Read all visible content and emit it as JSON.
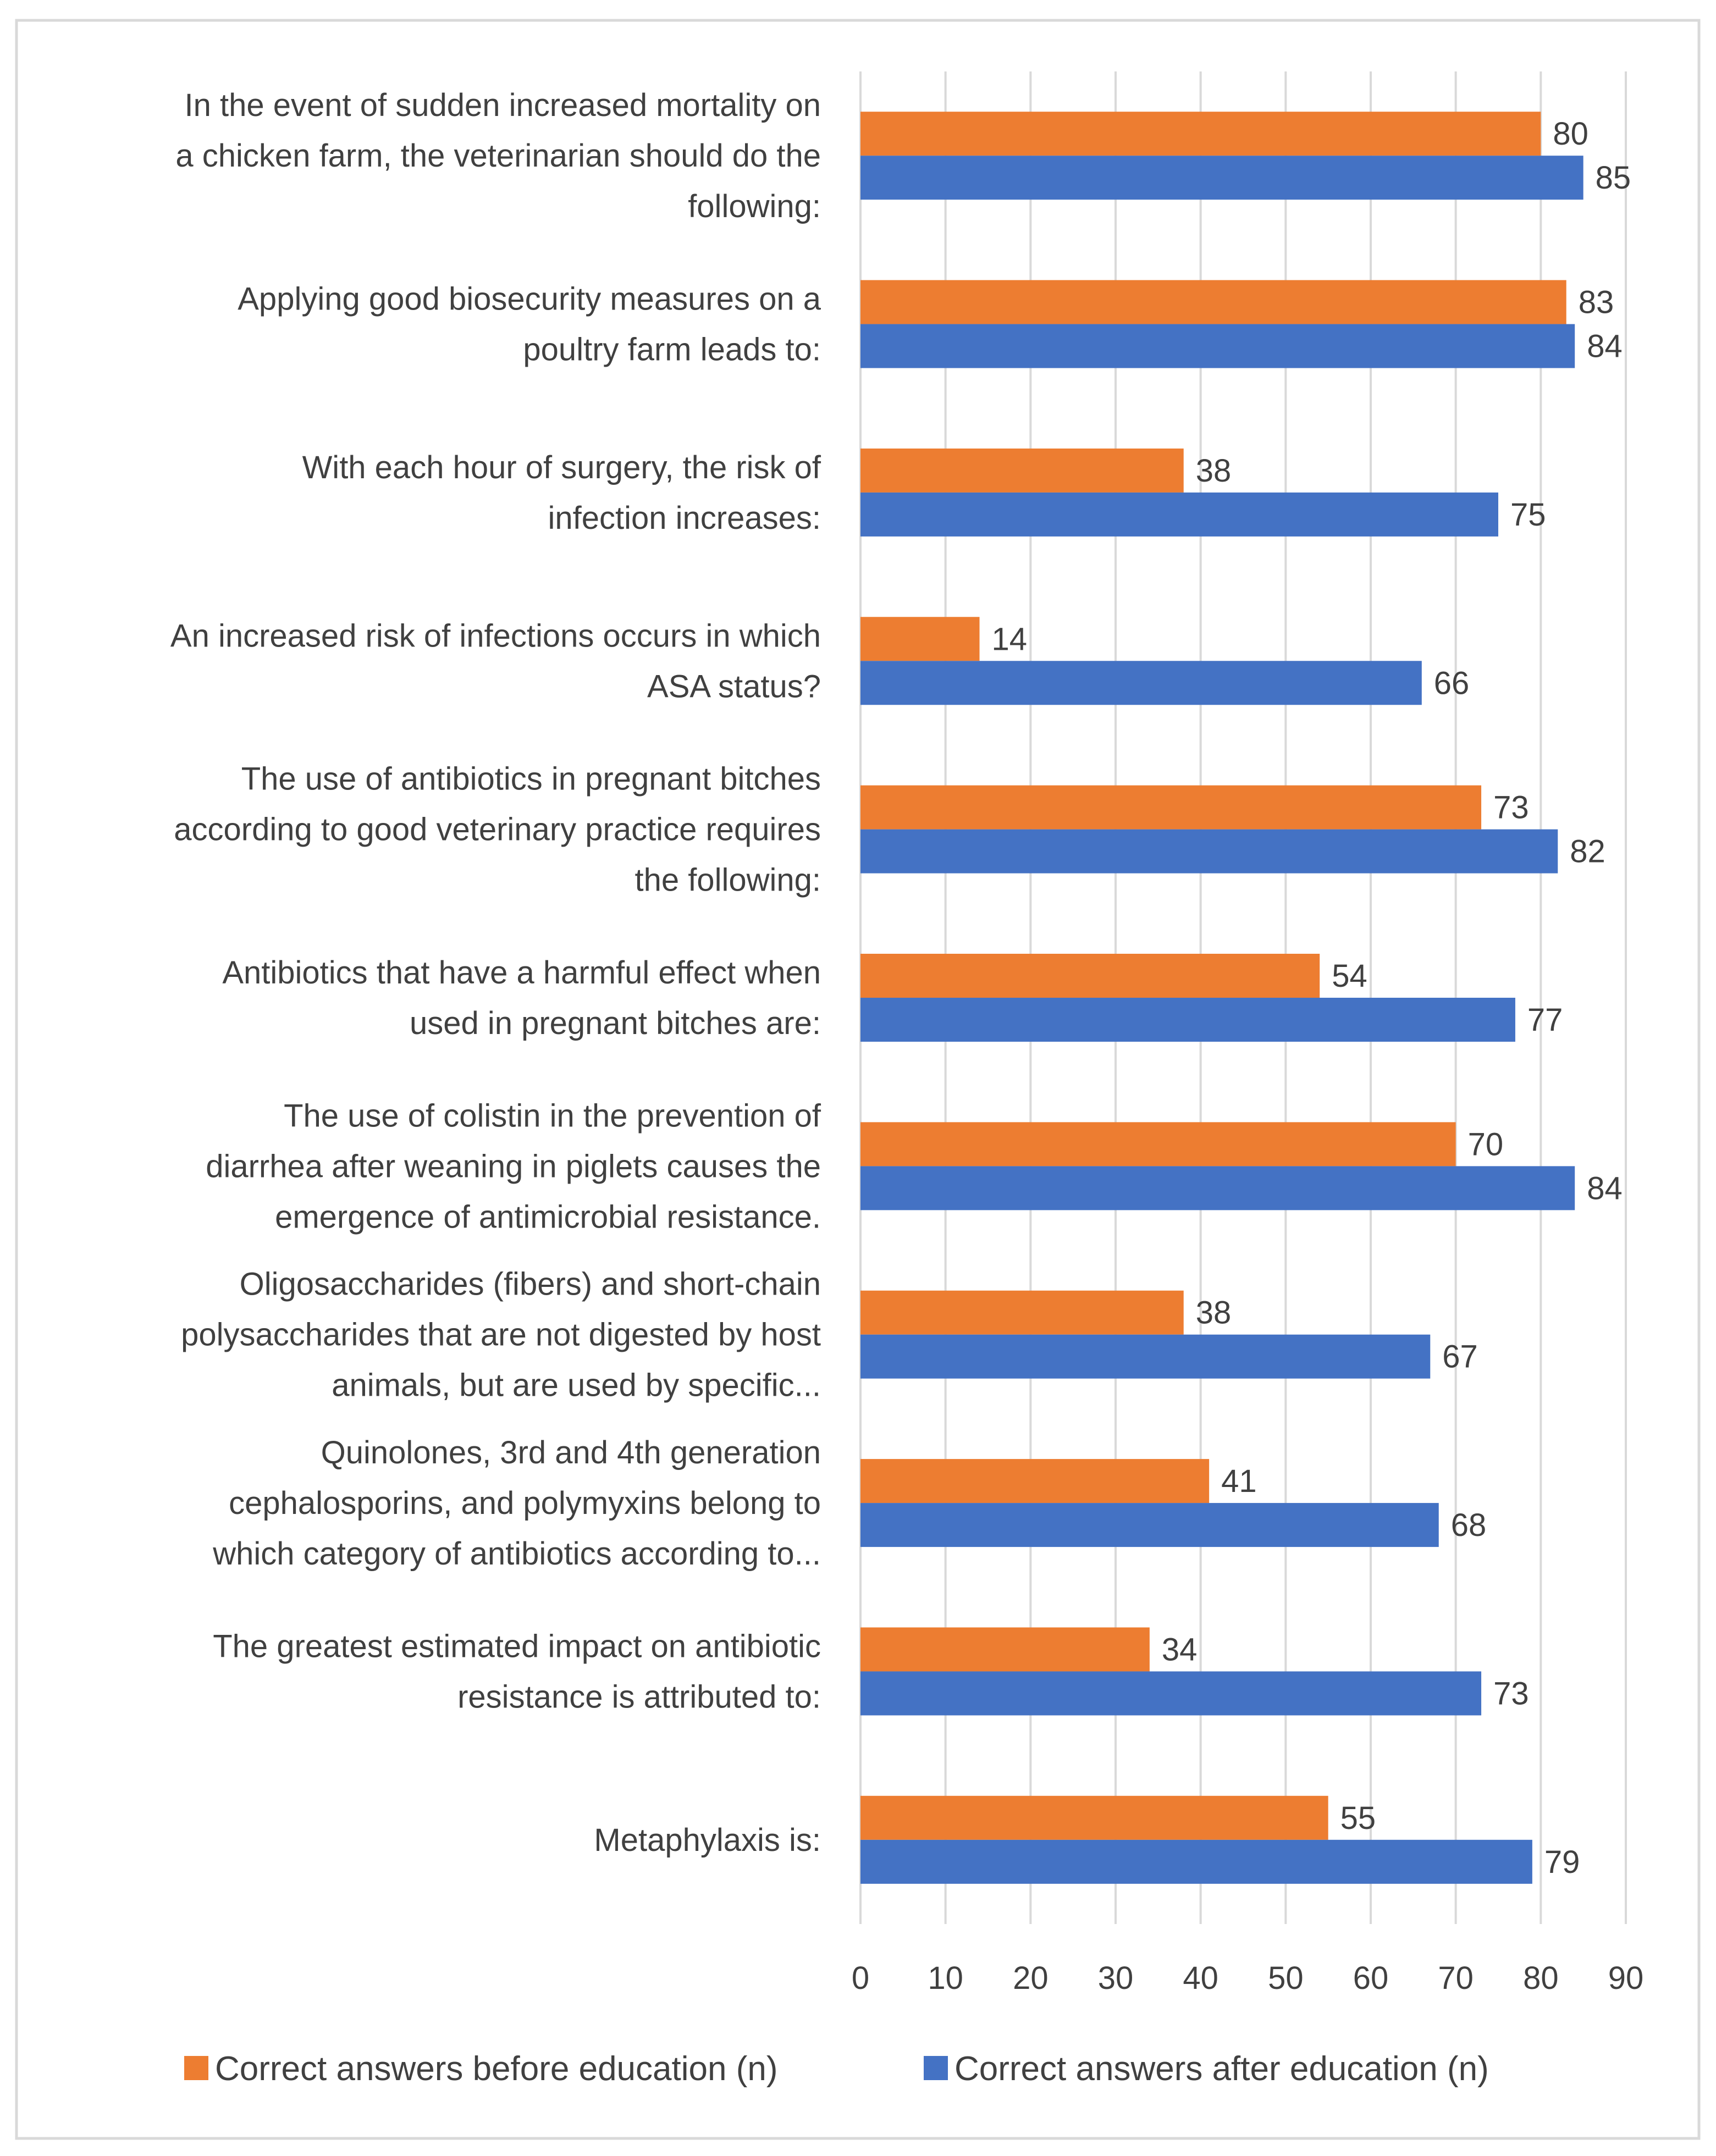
{
  "chart_data": {
    "type": "bar",
    "orientation": "horizontal",
    "title": "",
    "xlabel": "",
    "ylabel": "",
    "xlim": [
      0,
      90
    ],
    "xticks": [
      0,
      10,
      20,
      30,
      40,
      50,
      60,
      70,
      80,
      90
    ],
    "grid": true,
    "legend_position": "bottom",
    "categories": [
      [
        "In the event of sudden increased mortality on",
        "a chicken farm, the veterinarian should do the",
        "following:"
      ],
      [
        "Applying good biosecurity measures on a",
        "poultry farm leads to:"
      ],
      [
        "With each hour of surgery, the risk of",
        "infection increases:"
      ],
      [
        "An increased risk of infections occurs in which",
        "ASA status?"
      ],
      [
        "The use of antibiotics in pregnant bitches",
        "according to good veterinary practice requires",
        "the following:"
      ],
      [
        "Antibiotics that have a harmful effect when",
        "used in pregnant bitches are:"
      ],
      [
        "The use of colistin in the prevention of",
        "diarrhea after weaning in piglets causes the",
        "emergence of antimicrobial resistance."
      ],
      [
        "Oligosaccharides (fibers) and short-chain",
        "polysaccharides that are not digested by host",
        "animals, but are used by specific..."
      ],
      [
        "Quinolones, 3rd and 4th generation",
        "cephalosporins, and polymyxins belong to",
        "which category of antibiotics according to..."
      ],
      [
        "The greatest estimated impact on antibiotic",
        "resistance is attributed to:"
      ],
      [
        "Metaphylaxis is:"
      ]
    ],
    "series": [
      {
        "name": "Correct answers before education (n)",
        "color": "#ED7D31",
        "values": [
          80,
          83,
          38,
          14,
          73,
          54,
          70,
          38,
          41,
          34,
          55
        ]
      },
      {
        "name": "Correct answers after education (n)",
        "color": "#4472C4",
        "values": [
          85,
          84,
          75,
          66,
          82,
          77,
          84,
          67,
          68,
          73,
          79
        ]
      }
    ]
  }
}
